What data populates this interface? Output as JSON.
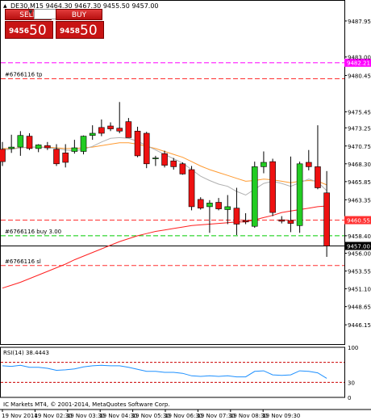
{
  "header": {
    "marker": "▲",
    "info": "DE30,M15  9464.30 9467.30 9455.50 9457.00"
  },
  "trade_panel": {
    "sell_label": "SELL",
    "buy_label": "BUY",
    "volume": "3.00",
    "sell_price_small": "9456",
    "sell_price_big": "50",
    "buy_price_small": "9458",
    "buy_price_big": "50"
  },
  "chart_data": {
    "type": "candlestick",
    "symbol": "DE30",
    "timeframe": "M15",
    "ylim": [
      9443.5,
      9490.5
    ],
    "price_ticks": [
      "9487.95",
      "9483.00",
      "9480.45",
      "9475.45",
      "9473.25",
      "9470.75",
      "9468.30",
      "9465.85",
      "9463.35",
      "9458.40",
      "9456.00",
      "9453.55",
      "9451.10",
      "9448.65",
      "9446.15"
    ],
    "time_labels": [
      "19 Nov 2014",
      "19 Nov 02:30",
      "19 Nov 03:30",
      "19 Nov 04:30",
      "19 Nov 05:30",
      "19 Nov 06:30",
      "19 Nov 07:30",
      "19 Nov 08:30",
      "19 Nov 09:30"
    ],
    "candles": [
      {
        "o": 9470.3,
        "h": 9471.3,
        "l": 9468.0,
        "c": 9468.6
      },
      {
        "o": 9470.4,
        "h": 9472.3,
        "l": 9469.8,
        "c": 9470.6
      },
      {
        "o": 9470.6,
        "h": 9472.8,
        "l": 9469.4,
        "c": 9472.2
      },
      {
        "o": 9472.1,
        "h": 9472.5,
        "l": 9470.2,
        "c": 9470.4
      },
      {
        "o": 9470.4,
        "h": 9471.0,
        "l": 9469.9,
        "c": 9470.9
      },
      {
        "o": 9470.8,
        "h": 9471.3,
        "l": 9470.2,
        "c": 9470.5
      },
      {
        "o": 9470.3,
        "h": 9471.0,
        "l": 9468.0,
        "c": 9468.3
      },
      {
        "o": 9469.8,
        "h": 9471.0,
        "l": 9467.8,
        "c": 9468.5
      },
      {
        "o": 9470.0,
        "h": 9471.6,
        "l": 9469.7,
        "c": 9470.5
      },
      {
        "o": 9470.0,
        "h": 9472.2,
        "l": 9469.6,
        "c": 9472.1
      },
      {
        "o": 9472.2,
        "h": 9473.6,
        "l": 9471.6,
        "c": 9472.5
      },
      {
        "o": 9473.3,
        "h": 9474.4,
        "l": 9472.1,
        "c": 9472.5
      },
      {
        "o": 9473.5,
        "h": 9474.0,
        "l": 9472.8,
        "c": 9473.1
      },
      {
        "o": 9473.2,
        "h": 9476.8,
        "l": 9472.5,
        "c": 9472.8
      },
      {
        "o": 9474.1,
        "h": 9474.6,
        "l": 9471.9,
        "c": 9471.9
      },
      {
        "o": 9472.8,
        "h": 9473.4,
        "l": 9469.2,
        "c": 9469.4
      },
      {
        "o": 9472.5,
        "h": 9472.7,
        "l": 9467.7,
        "c": 9468.3
      },
      {
        "o": 9469.0,
        "h": 9469.4,
        "l": 9468.0,
        "c": 9469.1
      },
      {
        "o": 9469.7,
        "h": 9470.1,
        "l": 9467.8,
        "c": 9468.1
      },
      {
        "o": 9468.7,
        "h": 9469.1,
        "l": 9467.5,
        "c": 9467.9
      },
      {
        "o": 9468.3,
        "h": 9468.5,
        "l": 9466.8,
        "c": 9466.9
      },
      {
        "o": 9467.5,
        "h": 9468.0,
        "l": 9461.9,
        "c": 9462.4
      },
      {
        "o": 9463.4,
        "h": 9463.7,
        "l": 9462.0,
        "c": 9462.2
      },
      {
        "o": 9462.4,
        "h": 9463.3,
        "l": 9458.8,
        "c": 9462.9
      },
      {
        "o": 9463.0,
        "h": 9463.6,
        "l": 9461.9,
        "c": 9462.1
      },
      {
        "o": 9462.0,
        "h": 9464.0,
        "l": 9460.0,
        "c": 9462.4
      },
      {
        "o": 9462.2,
        "h": 9465.0,
        "l": 9458.5,
        "c": 9460.0
      },
      {
        "o": 9460.5,
        "h": 9461.5,
        "l": 9460.0,
        "c": 9460.3
      },
      {
        "o": 9459.7,
        "h": 9468.6,
        "l": 9459.5,
        "c": 9467.9
      },
      {
        "o": 9467.9,
        "h": 9470.0,
        "l": 9467.0,
        "c": 9468.5
      },
      {
        "o": 9468.6,
        "h": 9469.0,
        "l": 9461.1,
        "c": 9461.6
      },
      {
        "o": 9460.6,
        "h": 9461.1,
        "l": 9460.1,
        "c": 9460.4
      },
      {
        "o": 9460.5,
        "h": 9469.3,
        "l": 9458.9,
        "c": 9460.1
      },
      {
        "o": 9459.8,
        "h": 9468.6,
        "l": 9458.8,
        "c": 9468.3
      },
      {
        "o": 9468.5,
        "h": 9470.2,
        "l": 9467.4,
        "c": 9467.9
      },
      {
        "o": 9467.9,
        "h": 9473.6,
        "l": 9464.8,
        "c": 9465.0
      },
      {
        "o": 9464.3,
        "h": 9467.3,
        "l": 9455.5,
        "c": 9457.0
      }
    ],
    "ma_fast": [
      9470.2,
      9470.3,
      9470.5,
      9470.6,
      9470.6,
      9470.5,
      9470.4,
      9470.2,
      9470.1,
      9470.3,
      9470.7,
      9471.3,
      9471.8,
      9471.9,
      9471.8,
      9471.4,
      9470.8,
      9470.2,
      9469.6,
      9469.0,
      9468.4,
      9467.5,
      9466.6,
      9466.0,
      9465.5,
      9465.2,
      9464.5,
      9464.0,
      9464.8,
      9465.6,
      9465.9,
      9465.6,
      9465.2,
      9465.7,
      9466.2,
      9465.8,
      9464.6
    ],
    "ma_medium": [
      9470.4,
      9470.4,
      9470.5,
      9470.6,
      9470.6,
      9470.6,
      9470.5,
      9470.4,
      9470.4,
      9470.5,
      9470.6,
      9470.8,
      9471.0,
      9471.2,
      9471.2,
      9471.0,
      9470.7,
      9470.4,
      9470.0,
      9469.6,
      9469.2,
      9468.6,
      9468.0,
      9467.5,
      9467.1,
      9466.7,
      9466.3,
      9465.9,
      9466.0,
      9466.2,
      9466.1,
      9465.9,
      9465.7,
      9465.9,
      9466.0,
      9465.9,
      9465.4
    ],
    "ma_slow": [
      9451.2,
      9451.6,
      9452.0,
      9452.5,
      9453.0,
      9453.5,
      9454.0,
      9454.5,
      9455.1,
      9455.6,
      9456.1,
      9456.6,
      9457.1,
      9457.6,
      9458.0,
      9458.4,
      9458.7,
      9459.0,
      9459.2,
      9459.4,
      9459.6,
      9459.8,
      9459.9,
      9460.0,
      9460.1,
      9460.2,
      9460.3,
      9460.3,
      9460.6,
      9460.9,
      9461.2,
      9461.6,
      9461.8,
      9462.0,
      9462.2,
      9462.4,
      9462.5
    ],
    "levels": [
      {
        "name": "tp",
        "label": "#6766116 tp",
        "price": 9480.0,
        "color": "#ff3030",
        "value_label": ""
      },
      {
        "name": "magenta",
        "label": "",
        "price": 9482.2,
        "color": "#ff00ff",
        "value_label": "9482.21"
      },
      {
        "name": "buy",
        "label": "#6766116 buy 3.00",
        "price": 9458.4,
        "color": "#00cc00",
        "value_label": ""
      },
      {
        "name": "red",
        "label": "",
        "price": 9460.55,
        "color": "#ff3030",
        "value_label": "9460.55"
      },
      {
        "name": "sl",
        "label": "#6766116 sl",
        "price": 9454.3,
        "color": "#ff3030",
        "value_label": ""
      }
    ],
    "current_price": "9457.00",
    "rsi": {
      "label": "RSI(14) 38.4443",
      "levels": [
        70,
        30
      ],
      "ticks": [
        "100",
        "30",
        "0"
      ],
      "values": [
        63,
        62,
        64,
        60,
        60,
        58,
        54,
        55,
        57,
        61,
        63,
        64,
        63,
        63,
        60,
        56,
        52,
        52,
        50,
        50,
        48,
        43,
        42,
        43,
        42,
        43,
        41,
        41,
        52,
        53,
        45,
        44,
        45,
        53,
        52,
        49,
        38
      ]
    },
    "copyright": "IC Markets MT4, © 2001-2014, MetaQuotes Software Corp."
  }
}
